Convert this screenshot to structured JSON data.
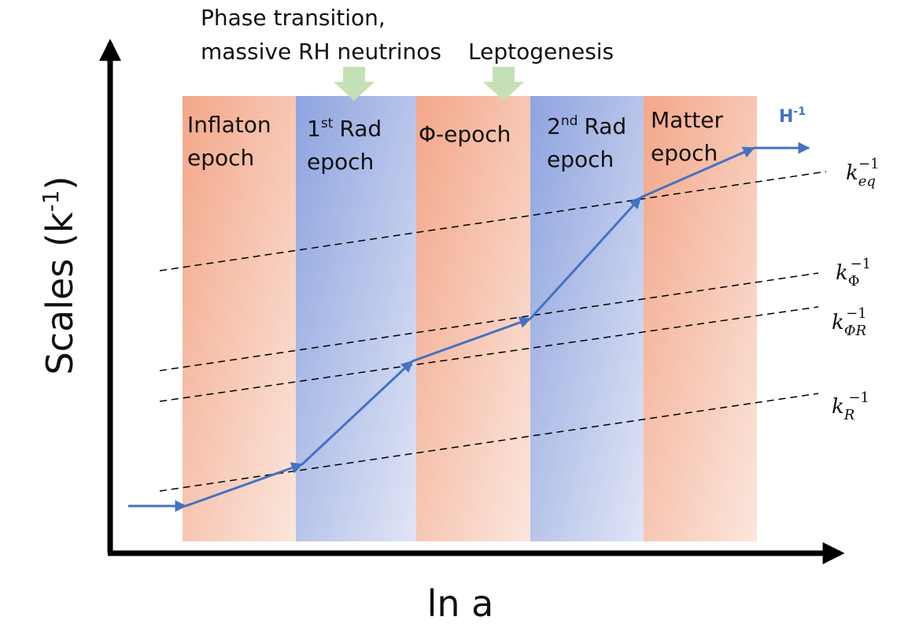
{
  "annotations": [
    {
      "lines": [
        "Phase transition,",
        "massive RH neutrinos"
      ]
    },
    {
      "lines": [
        "Leptogenesis"
      ]
    }
  ],
  "epochs": [
    {
      "name": "Inflaton",
      "line2": "epoch"
    },
    {
      "number": "1",
      "ordinal": "st",
      "name": "Rad",
      "line2": "epoch"
    },
    {
      "name": "Φ-epoch"
    },
    {
      "number": "2",
      "ordinal": "nd",
      "name": "Rad",
      "line2": "epoch"
    },
    {
      "name": "Matter",
      "line2": "epoch"
    }
  ],
  "hubble_label": {
    "base": "H",
    "exp": "-1"
  },
  "scales": [
    {
      "base": "k",
      "sub": "eq",
      "sup": "−1"
    },
    {
      "base": "k",
      "sub": "Φ",
      "sup": "−1"
    },
    {
      "base": "k",
      "sub": "ΦR",
      "sup": "−1"
    },
    {
      "base": "k",
      "sub": "R",
      "sup": "−1"
    }
  ],
  "y_axis": {
    "base": "Scales (k",
    "exp": "-1",
    "close": ")"
  },
  "x_axis": "ln a"
}
